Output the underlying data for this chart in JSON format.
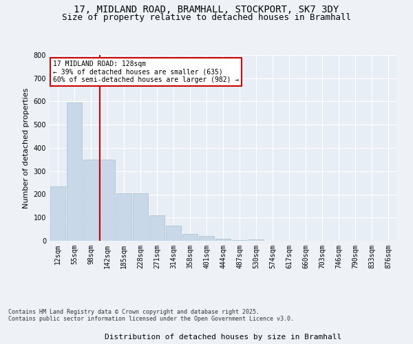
{
  "title_line1": "17, MIDLAND ROAD, BRAMHALL, STOCKPORT, SK7 3DY",
  "title_line2": "Size of property relative to detached houses in Bramhall",
  "xlabel": "Distribution of detached houses by size in Bramhall",
  "ylabel": "Number of detached properties",
  "footer_line1": "Contains HM Land Registry data © Crown copyright and database right 2025.",
  "footer_line2": "Contains public sector information licensed under the Open Government Licence v3.0.",
  "bin_labels": [
    "12sqm",
    "55sqm",
    "98sqm",
    "142sqm",
    "185sqm",
    "228sqm",
    "271sqm",
    "314sqm",
    "358sqm",
    "401sqm",
    "444sqm",
    "487sqm",
    "530sqm",
    "574sqm",
    "617sqm",
    "660sqm",
    "703sqm",
    "746sqm",
    "790sqm",
    "833sqm",
    "876sqm"
  ],
  "bar_values": [
    235,
    595,
    350,
    350,
    205,
    205,
    110,
    65,
    30,
    20,
    8,
    2,
    5,
    0,
    0,
    0,
    0,
    0,
    0,
    0,
    0
  ],
  "bar_color": "#c8d8e8",
  "bar_edgecolor": "#a8bfce",
  "vline_x_idx": 3,
  "vline_color": "#cc0000",
  "annotation_text": "17 MIDLAND ROAD: 128sqm\n← 39% of detached houses are smaller (635)\n60% of semi-detached houses are larger (982) →",
  "annotation_box_color": "#ffffff",
  "annotation_box_edgecolor": "#cc0000",
  "ylim": [
    0,
    800
  ],
  "yticks": [
    0,
    100,
    200,
    300,
    400,
    500,
    600,
    700,
    800
  ],
  "background_color": "#eef2f7",
  "plot_background": "#e8eef5",
  "grid_color": "#ffffff",
  "title_fontsize": 10,
  "subtitle_fontsize": 9,
  "xlabel_fontsize": 8,
  "ylabel_fontsize": 8,
  "tick_fontsize": 7,
  "footer_fontsize": 6,
  "annot_fontsize": 7
}
